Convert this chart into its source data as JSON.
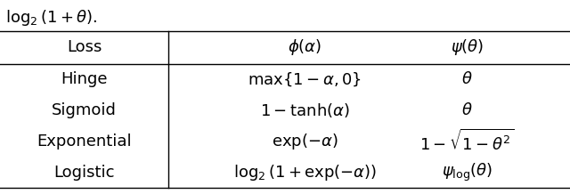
{
  "title_text": "$\\log_2(1+\\theta).$",
  "col_headers": [
    "Loss",
    "$\\phi(\\alpha)$",
    "$\\psi(\\theta)$"
  ],
  "rows": [
    [
      "Hinge",
      "$\\max\\{1-\\alpha, 0\\}$",
      "$\\theta$"
    ],
    [
      "Sigmoid",
      "$1-\\tanh(\\alpha)$",
      "$\\theta$"
    ],
    [
      "Exponential",
      "$\\exp(-\\alpha)$",
      "$1-\\sqrt{1-\\theta^2}$"
    ],
    [
      "Logistic",
      "$\\log_2(1+\\exp(-\\alpha))$",
      "$\\psi_{\\mathrm{log}}(\\theta)$"
    ]
  ],
  "bg_color": "#ffffff",
  "text_color": "#000000",
  "line_color": "#000000",
  "font_size": 13
}
